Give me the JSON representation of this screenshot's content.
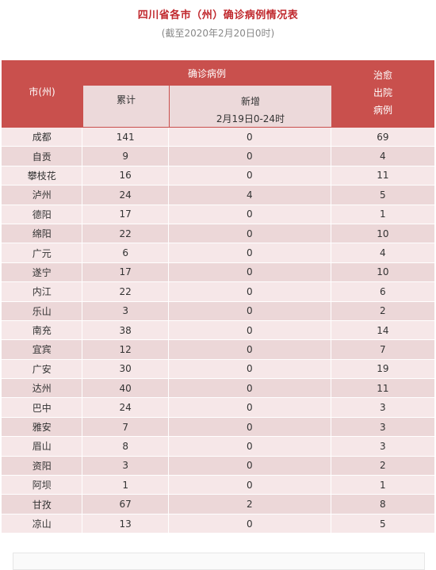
{
  "header": {
    "title": "四川省各市（州）确诊病例情况表",
    "subtitle": "(截至2020年2月20日0时)"
  },
  "table": {
    "col_city": "市(州)",
    "col_confirmed": "确诊病例",
    "col_cumulative": "累计",
    "col_new": "新增",
    "col_new_period": "2月19日0-24时",
    "col_cured_1": "治愈",
    "col_cured_2": "出院",
    "col_cured_3": "病例",
    "rows": [
      {
        "city": "成都",
        "cumulative": "141",
        "new": "0",
        "cured": "69"
      },
      {
        "city": "自贡",
        "cumulative": "9",
        "new": "0",
        "cured": "4"
      },
      {
        "city": "攀枝花",
        "cumulative": "16",
        "new": "0",
        "cured": "11"
      },
      {
        "city": "泸州",
        "cumulative": "24",
        "new": "4",
        "cured": "5"
      },
      {
        "city": "德阳",
        "cumulative": "17",
        "new": "0",
        "cured": "1"
      },
      {
        "city": "绵阳",
        "cumulative": "22",
        "new": "0",
        "cured": "10"
      },
      {
        "city": "广元",
        "cumulative": "6",
        "new": "0",
        "cured": "4"
      },
      {
        "city": "遂宁",
        "cumulative": "17",
        "new": "0",
        "cured": "10"
      },
      {
        "city": "内江",
        "cumulative": "22",
        "new": "0",
        "cured": "6"
      },
      {
        "city": "乐山",
        "cumulative": "3",
        "new": "0",
        "cured": "2"
      },
      {
        "city": "南充",
        "cumulative": "38",
        "new": "0",
        "cured": "14"
      },
      {
        "city": "宜宾",
        "cumulative": "12",
        "new": "0",
        "cured": "7"
      },
      {
        "city": "广安",
        "cumulative": "30",
        "new": "0",
        "cured": "19"
      },
      {
        "city": "达州",
        "cumulative": "40",
        "new": "0",
        "cured": "11"
      },
      {
        "city": "巴中",
        "cumulative": "24",
        "new": "0",
        "cured": "3"
      },
      {
        "city": "雅安",
        "cumulative": "7",
        "new": "0",
        "cured": "3"
      },
      {
        "city": "眉山",
        "cumulative": "8",
        "new": "0",
        "cured": "3"
      },
      {
        "city": "资阳",
        "cumulative": "3",
        "new": "0",
        "cured": "2"
      },
      {
        "city": "阿坝",
        "cumulative": "1",
        "new": "0",
        "cured": "1"
      },
      {
        "city": "甘孜",
        "cumulative": "67",
        "new": "2",
        "cured": "8"
      },
      {
        "city": "凉山",
        "cumulative": "13",
        "new": "0",
        "cured": "5"
      }
    ]
  },
  "colors": {
    "title": "#c0282d",
    "header_bg": "#c9504d",
    "row_light": "#f6e7e8",
    "row_dark": "#ecd7d8"
  }
}
